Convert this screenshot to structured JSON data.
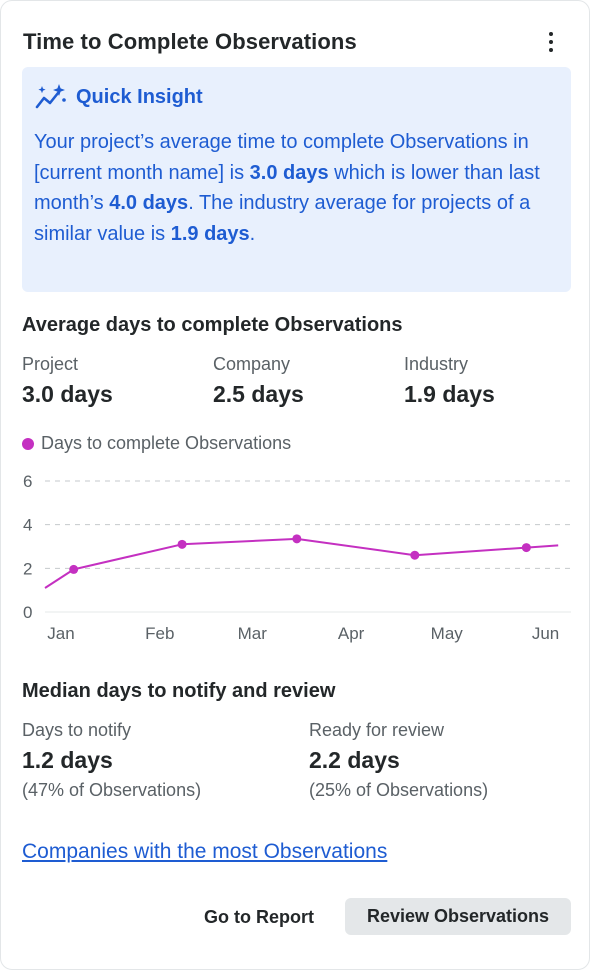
{
  "card": {
    "title": "Time to Complete Observations",
    "menu_icon": "more-vertical-icon"
  },
  "insight": {
    "icon": "sparkle-chart-icon",
    "title": "Quick Insight",
    "text_1": "Your project’s average time to complete Observations in [current month name] is ",
    "bold_1": "3.0 days",
    "text_2": " which is lower than last month’s ",
    "bold_2": "4.0 days",
    "text_3": ". The industry average for projects of a similar value is ",
    "bold_3": "1.9 days",
    "text_4": ".",
    "color": "#1e5cd2",
    "background": "#e8f0fd"
  },
  "averages": {
    "title": "Average days to complete Observations",
    "stats": [
      {
        "label": "Project",
        "value": "3.0 days"
      },
      {
        "label": "Company",
        "value": "2.5 days"
      },
      {
        "label": "Industry",
        "value": "1.9 days"
      }
    ]
  },
  "chart_data": {
    "type": "line",
    "series": [
      {
        "name": "Days to complete Observations",
        "color": "#c430c1",
        "points": [
          {
            "x": "Jan 1",
            "y": 1.1
          },
          {
            "x": "Jan 10",
            "y": 1.95
          },
          {
            "x": "Feb 13",
            "y": 3.1
          },
          {
            "x": "Mar 20",
            "y": 3.35
          },
          {
            "x": "Apr 26",
            "y": 2.6
          },
          {
            "x": "May 31",
            "y": 2.95
          },
          {
            "x": "Jun 10",
            "y": 3.05
          }
        ],
        "markers": [
          1,
          2,
          3,
          4,
          5
        ]
      }
    ],
    "x_ticks": [
      "Jan",
      "Feb",
      "Mar",
      "Apr",
      "May",
      "Jun"
    ],
    "y_ticks": [
      "0",
      "2",
      "4",
      "6"
    ],
    "ylim": [
      0,
      6
    ],
    "grid": "dashed horizontal",
    "legend": "top-left",
    "xlabel": "",
    "ylabel": ""
  },
  "median": {
    "title": "Median days to notify and review",
    "stats": [
      {
        "label": "Days to notify",
        "value": "1.2 days",
        "sub": "(47% of Observations)"
      },
      {
        "label": "Ready for review",
        "value": "2.2 days",
        "sub": "(25% of Observations)"
      }
    ]
  },
  "link_label": "Companies with the most Observations",
  "buttons": {
    "report": "Go to Report",
    "review": "Review Observations"
  }
}
